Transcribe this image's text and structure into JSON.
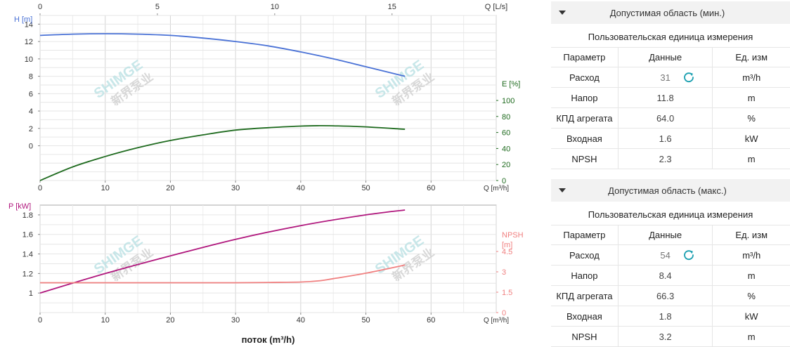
{
  "chart_data": [
    {
      "type": "line",
      "top_axis": {
        "label": "Q [L/s]",
        "ticks": [
          0,
          5,
          10,
          15
        ],
        "range": [
          0,
          19.44
        ]
      },
      "xlabel": "Q [m³/h]",
      "xticks": [
        0,
        10,
        20,
        30,
        40,
        50,
        60
      ],
      "xlim": [
        0,
        70
      ],
      "y_left": {
        "label": "H [m]",
        "ticks": [
          0,
          2,
          4,
          6,
          8,
          10,
          12,
          14
        ],
        "ylim": [
          -4,
          15
        ]
      },
      "y_right": {
        "label": "E [%]",
        "ticks": [
          0,
          20,
          40,
          60,
          80,
          100
        ],
        "ylim": [
          0,
          100
        ]
      },
      "grid": true,
      "series": [
        {
          "name": "H",
          "axis": "left",
          "color": "#4a72d6",
          "x": [
            0,
            5,
            10,
            15,
            20,
            25,
            30,
            35,
            40,
            45,
            50,
            56
          ],
          "y": [
            12.7,
            12.85,
            12.9,
            12.85,
            12.7,
            12.4,
            12.0,
            11.5,
            10.8,
            10.0,
            9.1,
            8.0
          ]
        },
        {
          "name": "E",
          "axis": "right",
          "color": "#1f6b1f",
          "x": [
            0,
            5,
            10,
            15,
            20,
            25,
            30,
            35,
            40,
            43,
            45,
            50,
            56
          ],
          "y": [
            0,
            17,
            30,
            41,
            50,
            57,
            63,
            66,
            68,
            68.5,
            68.3,
            67,
            64
          ]
        }
      ]
    },
    {
      "type": "line",
      "xlabel": "Q [m³/h]",
      "xticks": [
        0,
        10,
        20,
        30,
        40,
        50,
        60
      ],
      "xlim": [
        0,
        70
      ],
      "bottom_label": "поток (m³/h)",
      "y_left": {
        "label": "P [kW]",
        "ticks": [
          1,
          1.2,
          1.4,
          1.6,
          1.8
        ],
        "ylim": [
          0.8,
          1.9
        ]
      },
      "y_right": {
        "label_line1": "NPSH",
        "label_line2": "[m]",
        "ticks": [
          0,
          1.5,
          3,
          4.5
        ],
        "ylim": [
          0,
          7.5
        ]
      },
      "grid": true,
      "series": [
        {
          "name": "P",
          "axis": "left",
          "color": "#b0177d",
          "x": [
            0,
            10,
            20,
            30,
            40,
            50,
            56
          ],
          "y": [
            1.0,
            1.2,
            1.38,
            1.55,
            1.69,
            1.8,
            1.85
          ]
        },
        {
          "name": "NPSH",
          "axis": "right",
          "color": "#f08080",
          "x": [
            0,
            10,
            20,
            30,
            35,
            40,
            43,
            45,
            50,
            56
          ],
          "y": [
            2.2,
            2.2,
            2.2,
            2.2,
            2.22,
            2.25,
            2.35,
            2.5,
            2.9,
            3.5
          ]
        }
      ]
    }
  ],
  "watermark": {
    "brand": "SHIMGE",
    "chinese": "新界泵业",
    "color": "#bfe3e6"
  },
  "panels": [
    {
      "title": "Допустимая область (мин.)",
      "unit_label": "Пользовательская единица измерения",
      "headers": [
        "Параметр",
        "Данные",
        "Ед. изм"
      ],
      "rows": [
        {
          "param": "Расход",
          "value": "31",
          "unit": "m³/h",
          "refresh": true
        },
        {
          "param": "Напор",
          "value": "11.8",
          "unit": "m"
        },
        {
          "param": "КПД агрегата",
          "value": "64.0",
          "unit": "%"
        },
        {
          "param": "Входная",
          "value": "1.6",
          "unit": "kW"
        },
        {
          "param": "NPSH",
          "value": "2.3",
          "unit": "m"
        }
      ]
    },
    {
      "title": "Допустимая область (макс.)",
      "unit_label": "Пользовательская единица измерения",
      "headers": [
        "Параметр",
        "Данные",
        "Ед. изм"
      ],
      "rows": [
        {
          "param": "Расход",
          "value": "54",
          "unit": "m³/h",
          "refresh": true
        },
        {
          "param": "Напор",
          "value": "8.4",
          "unit": "m"
        },
        {
          "param": "КПД агрегата",
          "value": "66.3",
          "unit": "%"
        },
        {
          "param": "Входная",
          "value": "1.8",
          "unit": "kW"
        },
        {
          "param": "NPSH",
          "value": "3.2",
          "unit": "m"
        }
      ]
    }
  ],
  "colors": {
    "accent_refresh": "#1a9fb0",
    "axis_right_top": "#1f6b1f",
    "axis_right_bottom": "#f08080",
    "axis_left_top": "#4a72d6",
    "axis_left_bottom": "#b0177d"
  },
  "icons": {
    "collapse": "triangle-down-icon",
    "refresh": "refresh-icon"
  }
}
